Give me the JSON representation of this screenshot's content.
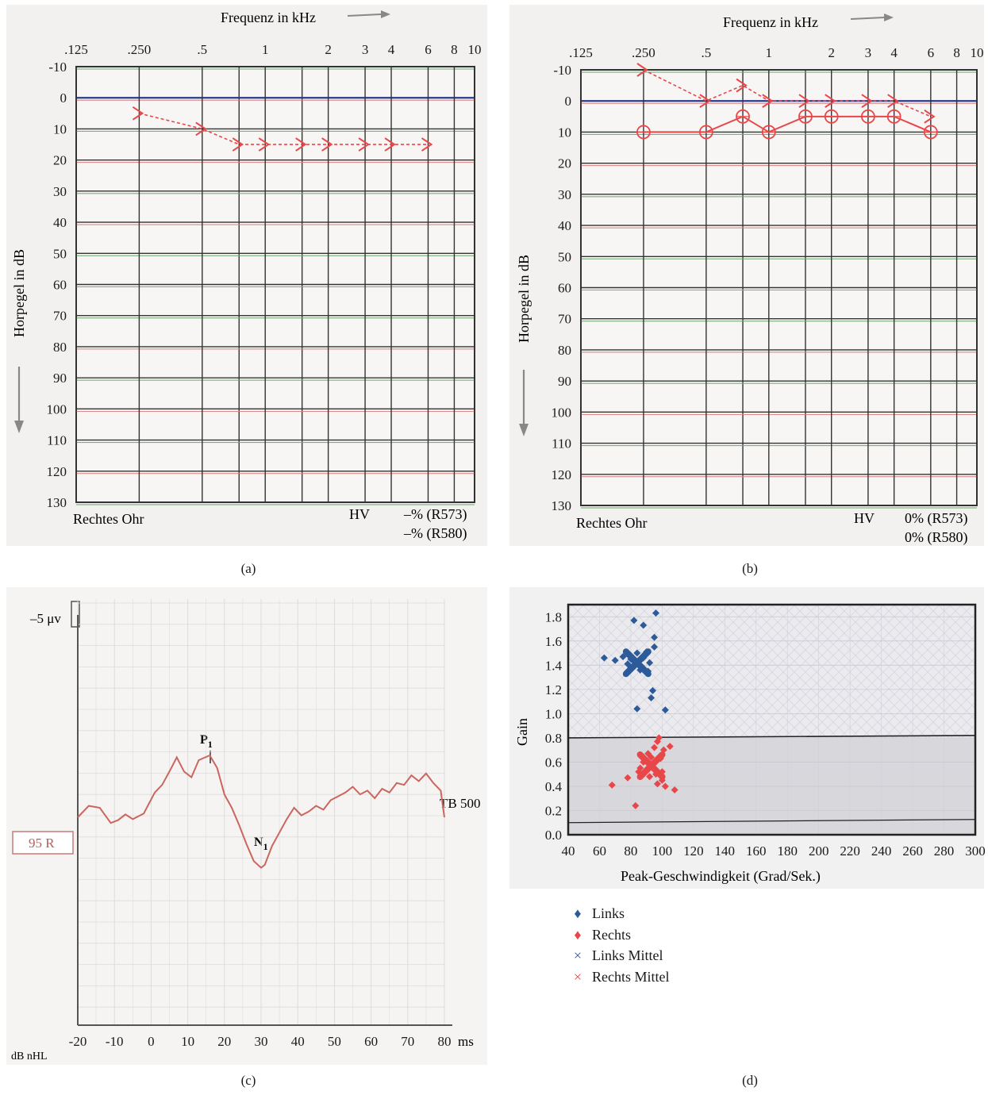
{
  "colors": {
    "panel_bg": "#f3f1ef",
    "grid_dark": "#333333",
    "grid_red": "#d97b7b",
    "grid_green": "#6aa56a",
    "series_red": "#e8474a",
    "series_blue": "#2d5b9a",
    "zero_line_blue": "#2a3a8c",
    "wave": "#c9665e",
    "shade": "#d8d8dc"
  },
  "panels": {
    "a": {
      "caption": "(a)",
      "freq_axis_label": "Frequenz in kHz",
      "db_axis_label": "Horpegel in dB",
      "ear_label": "Rechtes Ohr",
      "hv_label": "HV",
      "score1": "–% (R573)",
      "score2": "–% (R580)"
    },
    "b": {
      "caption": "(b)",
      "freq_axis_label": "Frequenz in kHz",
      "db_axis_label": "Horpegel in dB",
      "ear_label": "Rechtes Ohr",
      "hv_label": "HV",
      "score1": "0% (R573)",
      "score2": "0% (R580)"
    },
    "c": {
      "caption": "(c)",
      "amplitude_label": "–5 μv",
      "level_label": "95 R",
      "stimulus_label": "TB 500",
      "unit_label": "dB nHL",
      "ms_label": "ms",
      "peak_p": "P",
      "peak_p_sub": "1",
      "peak_n": "N",
      "peak_n_sub": "1"
    },
    "d": {
      "caption": "(d)",
      "ylabel": "Gain",
      "xlabel": "Peak-Geschwindigkeit (Grad/Sek.)"
    }
  },
  "legend_d": [
    {
      "label": "Links",
      "symbol": "♦",
      "color": "#2d5b9a"
    },
    {
      "label": "Rechts",
      "symbol": "♦",
      "color": "#e8474a"
    },
    {
      "label": "Links Mittel",
      "symbol": "×",
      "color": "#2d5b9a"
    },
    {
      "label": "Rechts Mittel",
      "symbol": "×",
      "color": "#e8474a"
    }
  ],
  "chart_data": [
    {
      "id": "a",
      "type": "line",
      "xscale": "log",
      "xlabel": "Frequenz in kHz",
      "ylabel": "Horpegel in dB",
      "x_tick_labels": [
        ".125",
        ".250",
        ".5",
        "1",
        "2",
        "3",
        "4",
        "6",
        "8",
        "10"
      ],
      "x_tick_values": [
        0.125,
        0.25,
        0.5,
        1,
        2,
        3,
        4,
        6,
        8,
        10
      ],
      "y_tick_labels": [
        "-10",
        "0",
        "10",
        "20",
        "30",
        "40",
        "50",
        "60",
        "70",
        "80",
        "90",
        "100",
        "110",
        "120",
        "130"
      ],
      "ylim": [
        -10,
        130
      ],
      "y_inverted": true,
      "series": [
        {
          "marker": ">",
          "style": "dashed",
          "x": [
            0.25,
            0.5,
            0.75,
            1,
            1.5,
            2,
            3,
            4,
            6
          ],
          "y": [
            5,
            10,
            15,
            15,
            15,
            15,
            15,
            15,
            15
          ]
        }
      ]
    },
    {
      "id": "b",
      "type": "line",
      "xscale": "log",
      "xlabel": "Frequenz in kHz",
      "ylabel": "Horpegel in dB",
      "x_tick_labels": [
        ".125",
        ".250",
        ".5",
        "1",
        "2",
        "3",
        "4",
        "6",
        "8",
        "10"
      ],
      "x_tick_values": [
        0.125,
        0.25,
        0.5,
        1,
        2,
        3,
        4,
        6,
        8,
        10
      ],
      "y_tick_labels": [
        "-10",
        "0",
        "10",
        "20",
        "30",
        "40",
        "50",
        "60",
        "70",
        "80",
        "90",
        "100",
        "110",
        "120",
        "130"
      ],
      "ylim": [
        -10,
        130
      ],
      "y_inverted": true,
      "series": [
        {
          "marker": "o",
          "style": "solid",
          "x": [
            0.25,
            0.5,
            0.75,
            1,
            1.5,
            2,
            3,
            4,
            6
          ],
          "y": [
            10,
            10,
            5,
            10,
            5,
            5,
            5,
            5,
            10
          ]
        },
        {
          "marker": ">",
          "style": "dashed",
          "x": [
            0.25,
            0.5,
            0.75,
            1,
            1.5,
            2,
            3,
            4,
            6
          ],
          "y": [
            -10,
            0,
            -5,
            0,
            0,
            0,
            0,
            0,
            5
          ]
        }
      ]
    },
    {
      "id": "c",
      "type": "line",
      "x_tick_labels": [
        "-20",
        "-10",
        "0",
        "10",
        "20",
        "30",
        "40",
        "50",
        "60",
        "70",
        "80"
      ],
      "xlim": [
        -20,
        80
      ],
      "annotations": [
        {
          "text": "P1",
          "x": 16
        },
        {
          "text": "N1",
          "x": 30
        }
      ],
      "series": [
        {
          "x": [
            -20,
            -17,
            -14,
            -11,
            -9,
            -7,
            -5,
            -2,
            1,
            3,
            5,
            7,
            9,
            11,
            13,
            16,
            18,
            20,
            22,
            24,
            26,
            28,
            30,
            31,
            33,
            35,
            37,
            39,
            41,
            43,
            45,
            47,
            49,
            51,
            53,
            55,
            57,
            59,
            61,
            63,
            65,
            67,
            69,
            71,
            73,
            75,
            77,
            79,
            80
          ],
          "y": [
            0,
            1.2,
            1.0,
            -0.6,
            -0.3,
            0.3,
            -0.2,
            0.4,
            2.6,
            3.4,
            4.8,
            6.3,
            4.8,
            4.2,
            6.0,
            6.5,
            5.2,
            2.4,
            1.0,
            -0.8,
            -2.8,
            -4.6,
            -5.3,
            -5.0,
            -3.0,
            -1.6,
            -0.2,
            1.0,
            0.2,
            0.6,
            1.2,
            0.8,
            1.8,
            2.2,
            2.6,
            3.2,
            2.4,
            2.8,
            2.0,
            3.0,
            2.6,
            3.6,
            3.4,
            4.4,
            3.8,
            4.6,
            3.6,
            2.8,
            0
          ]
        }
      ]
    },
    {
      "id": "d",
      "type": "scatter",
      "xlabel": "Peak-Geschwindigkeit (Grad/Sek.)",
      "ylabel": "Gain",
      "xlim": [
        40,
        300
      ],
      "ylim": [
        0,
        1.9
      ],
      "x_tick_labels": [
        "40",
        "60",
        "80",
        "100",
        "120",
        "140",
        "160",
        "180",
        "200",
        "220",
        "240",
        "260",
        "280",
        "300"
      ],
      "y_tick_labels": [
        "0.0",
        "0.2",
        "0.4",
        "0.6",
        "0.8",
        "1.0",
        "1.2",
        "1.4",
        "1.6",
        "1.8"
      ],
      "grid": true,
      "series": [
        {
          "name": "Links",
          "x": [
            63,
            70,
            75,
            78,
            80,
            82,
            84,
            85,
            86,
            88,
            90,
            92,
            93,
            94,
            95,
            96,
            82,
            88,
            91,
            102,
            95,
            84,
            89,
            80,
            86
          ],
          "y": [
            1.46,
            1.44,
            1.47,
            1.41,
            1.38,
            1.43,
            1.5,
            1.4,
            1.36,
            1.46,
            1.51,
            1.42,
            1.13,
            1.19,
            1.63,
            1.83,
            1.77,
            1.73,
            1.35,
            1.03,
            1.55,
            1.04,
            1.48,
            1.45,
            1.39
          ]
        },
        {
          "name": "Rechts",
          "x": [
            68,
            78,
            83,
            86,
            88,
            90,
            92,
            93,
            94,
            95,
            96,
            97,
            98,
            99,
            100,
            101,
            102,
            105,
            108,
            85,
            91,
            97,
            100,
            89,
            94
          ],
          "y": [
            0.41,
            0.47,
            0.24,
            0.55,
            0.6,
            0.53,
            0.48,
            0.64,
            0.58,
            0.72,
            0.5,
            0.42,
            0.8,
            0.63,
            0.45,
            0.7,
            0.4,
            0.73,
            0.37,
            0.52,
            0.67,
            0.77,
            0.52,
            0.61,
            0.55
          ]
        },
        {
          "name": "Links Mittel",
          "x": [
            84
          ],
          "y": [
            1.42
          ]
        },
        {
          "name": "Rechts Mittel",
          "x": [
            93
          ],
          "y": [
            0.57
          ]
        }
      ]
    }
  ]
}
